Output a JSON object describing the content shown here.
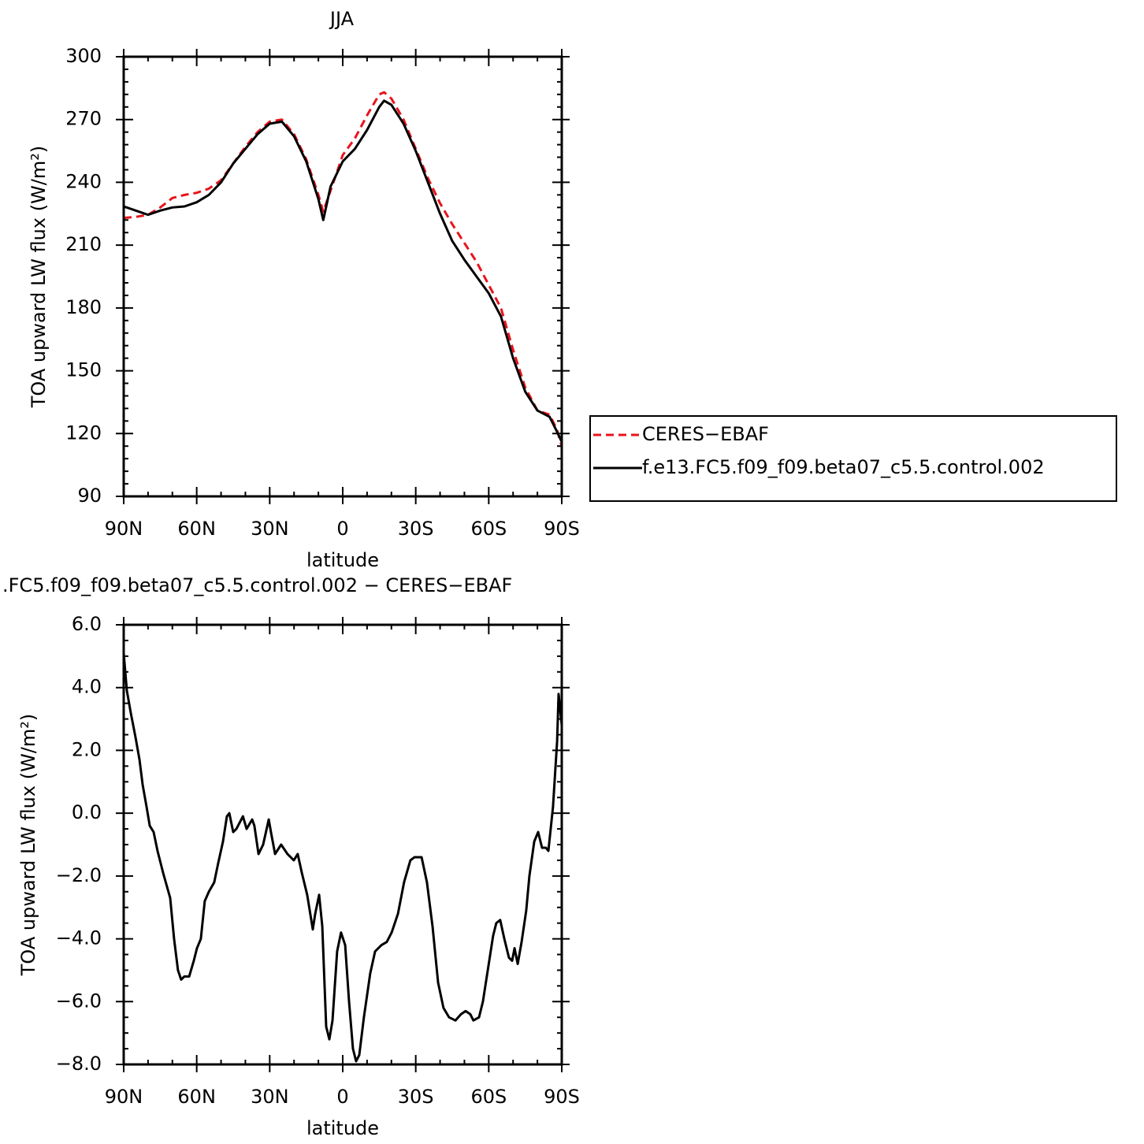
{
  "chart_data": [
    {
      "type": "line",
      "title": "JJA",
      "x_label": "latitude",
      "y_label": "TOA upward LW flux (W/m²)",
      "x": [
        90,
        85,
        80,
        75,
        70,
        65,
        60,
        55,
        50,
        45,
        40,
        35,
        30,
        25,
        20,
        15,
        10,
        8,
        5,
        0,
        -5,
        -10,
        -15,
        -17,
        -20,
        -25,
        -30,
        -35,
        -40,
        -45,
        -50,
        -55,
        -60,
        -65,
        -70,
        -75,
        -80,
        -85,
        -88,
        -90
      ],
      "series": [
        {
          "name": "CERES−EBAF",
          "color": "#e8141c",
          "line_style": "dashed",
          "values": [
            223,
            223.5,
            224.5,
            228,
            232.5,
            234,
            235,
            237,
            241,
            249,
            257,
            264,
            269,
            270,
            263,
            251,
            234,
            226,
            236,
            253,
            261,
            272,
            282,
            283,
            280,
            270,
            256,
            242,
            230,
            220,
            211,
            202,
            191,
            180,
            160,
            142,
            131,
            129,
            122,
            114
          ]
        },
        {
          "name": "f.e13.FC5.f09_f09.beta07_c5.5.control.002",
          "color": "#000000",
          "line_style": "solid",
          "values": [
            228.5,
            226.5,
            224.5,
            226.5,
            228,
            228.5,
            230.5,
            234,
            240,
            249,
            256,
            263,
            268,
            269,
            262,
            250,
            232,
            222,
            238,
            250,
            256,
            265,
            276,
            279,
            277,
            268,
            255,
            240,
            225,
            212,
            203,
            195,
            187,
            176,
            156,
            140,
            131,
            128,
            121,
            116
          ]
        }
      ],
      "xlim": [
        90,
        -90
      ],
      "xticks": [
        {
          "value": 90,
          "label": "90N"
        },
        {
          "value": 60,
          "label": "60N"
        },
        {
          "value": 30,
          "label": "30N"
        },
        0,
        {
          "value": -30,
          "label": "30S"
        },
        {
          "value": -60,
          "label": "60S"
        },
        {
          "value": -90,
          "label": "90S"
        }
      ],
      "ylim": [
        90,
        300
      ],
      "yticks": [
        90,
        120,
        150,
        180,
        210,
        240,
        270,
        300
      ]
    },
    {
      "type": "line",
      "title": ".FC5.f09_f09.beta07_c5.5.control.002 − CERES−EBAF",
      "x_label": "latitude",
      "y_label": "TOA upward LW flux (W/m²)",
      "x": [
        90,
        88.7,
        87.1,
        85.1,
        83.5,
        82.2,
        80.6,
        79.3,
        77.7,
        76.1,
        73.8,
        70.9,
        69.3,
        67.7,
        66.4,
        65.1,
        63.1,
        61.2,
        59.9,
        58.3,
        56.7,
        55,
        52.8,
        51.2,
        49.2,
        47.6,
        46.6,
        45,
        43.7,
        41,
        39.5,
        37.2,
        36.3,
        34.6,
        32.7,
        30.4,
        29.5,
        27.8,
        25.3,
        22.7,
        20.1,
        18.5,
        16.8,
        14.6,
        12.3,
        11.3,
        9.7,
        8.4,
        6.8,
        5.5,
        4.2,
        2.3,
        0.7,
        -1,
        -2.6,
        -4.2,
        -5.5,
        -6.8,
        -8.7,
        -11.3,
        -13.3,
        -15.9,
        -18.1,
        -20.1,
        -22.7,
        -25.2,
        -27.8,
        -29.5,
        -32.4,
        -34.6,
        -36.9,
        -39.2,
        -41.4,
        -43.7,
        -46.3,
        -48.6,
        -50.5,
        -52.4,
        -53.7,
        -56,
        -57.6,
        -59.6,
        -61.8,
        -63.1,
        -64.7,
        -66.4,
        -68.3,
        -69.6,
        -70.6,
        -71.9,
        -73.5,
        -75.4,
        -76.7,
        -78.7,
        -80.3,
        -81.9,
        -83.5,
        -84.5,
        -86.4,
        -88.1,
        -88.7,
        -90
      ],
      "values": [
        5.1,
        3.9,
        3.2,
        2.4,
        1.7,
        0.9,
        0.2,
        -0.4,
        -0.6,
        -1.2,
        -1.9,
        -2.7,
        -4.0,
        -5.0,
        -5.3,
        -5.2,
        -5.2,
        -4.7,
        -4.3,
        -4.0,
        -2.8,
        -2.5,
        -2.2,
        -1.6,
        -0.9,
        -0.1,
        0.0,
        -0.6,
        -0.5,
        -0.1,
        -0.5,
        -0.2,
        -0.4,
        -1.3,
        -1.0,
        -0.2,
        -0.6,
        -1.3,
        -1.0,
        -1.3,
        -1.5,
        -1.3,
        -1.9,
        -2.6,
        -3.7,
        -3.2,
        -2.6,
        -3.6,
        -6.8,
        -7.2,
        -6.6,
        -4.4,
        -3.8,
        -4.2,
        -6.0,
        -7.5,
        -7.9,
        -7.7,
        -6.5,
        -5.1,
        -4.4,
        -4.2,
        -4.1,
        -3.8,
        -3.2,
        -2.2,
        -1.5,
        -1.4,
        -1.4,
        -2.2,
        -3.6,
        -5.4,
        -6.2,
        -6.5,
        -6.6,
        -6.4,
        -6.3,
        -6.4,
        -6.6,
        -6.5,
        -6.0,
        -5.0,
        -3.9,
        -3.5,
        -3.4,
        -4.0,
        -4.6,
        -4.7,
        -4.3,
        -4.8,
        -4.1,
        -3.1,
        -2.0,
        -0.9,
        -0.6,
        -1.1,
        -1.1,
        -1.2,
        0.2,
        2.3,
        3.8,
        2.8
      ],
      "color": "#000000",
      "xlim": [
        90,
        -90
      ],
      "xticks": [
        {
          "value": 90,
          "label": "90N"
        },
        {
          "value": 60,
          "label": "60N"
        },
        {
          "value": 30,
          "label": "30N"
        },
        0,
        {
          "value": -30,
          "label": "30S"
        },
        {
          "value": -60,
          "label": "60S"
        },
        {
          "value": -90,
          "label": "90S"
        }
      ],
      "ylim": [
        -8,
        6
      ],
      "yticks": [
        {
          "value": -8,
          "label": "−8.0"
        },
        {
          "value": -6,
          "label": "−6.0"
        },
        {
          "value": -4,
          "label": "−4.0"
        },
        {
          "value": -2,
          "label": "−2.0"
        },
        {
          "value": 0,
          "label": "0.0"
        },
        {
          "value": 2,
          "label": "2.0"
        },
        {
          "value": 4,
          "label": "4.0"
        },
        {
          "value": 6,
          "label": "6.0"
        }
      ]
    }
  ]
}
